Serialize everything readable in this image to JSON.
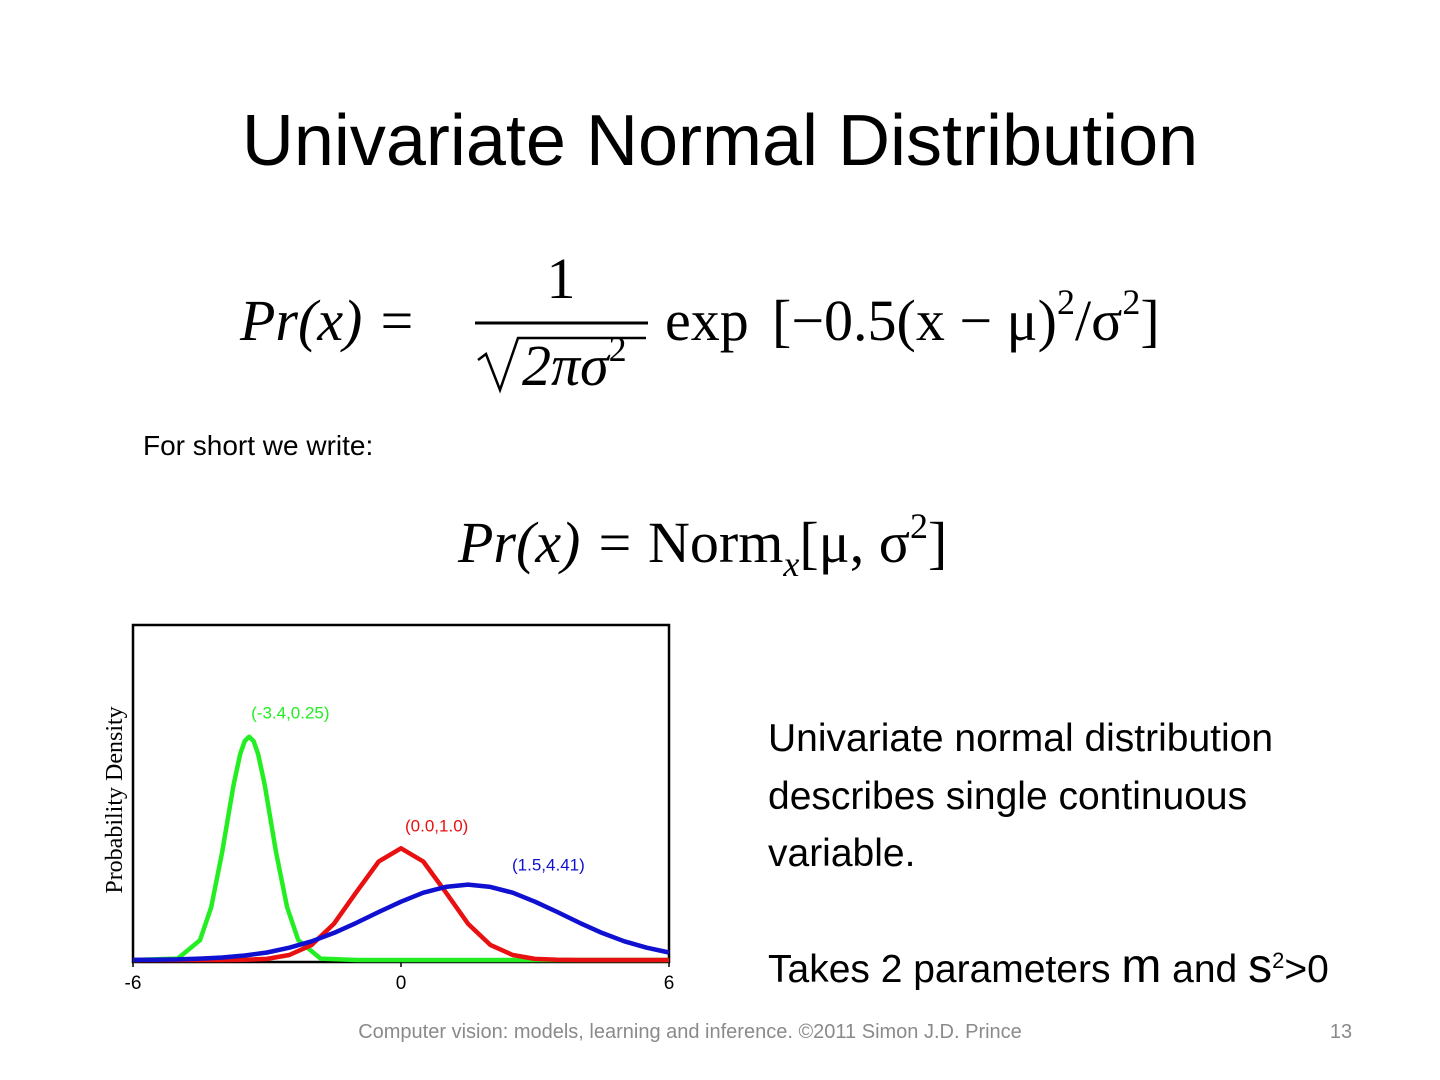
{
  "slide": {
    "title": "Univariate Normal Distribution",
    "formula1": {
      "lhs": "Pr(x) =",
      "numerator": "1",
      "denominator": "2πσ",
      "denominator_exp": "2",
      "func": "exp",
      "arg": "[−0.5(x − μ)",
      "arg_exp": "2",
      "arg_div": "/σ",
      "arg_div_exp": "2",
      "close": "]"
    },
    "note": "For short we write:",
    "formula2": {
      "lhs": "Pr(x) =",
      "func": "Norm",
      "sub": "x",
      "arg": "[μ, σ",
      "arg_exp": "2",
      "close": "]"
    },
    "body": [
      "Univariate normal distribution",
      "describes single continuous",
      "variable."
    ],
    "params": {
      "text": "Takes 2 parameters ",
      "symbol1": "m",
      "middle": " and ",
      "symbol2": "s",
      "exponent": "2",
      "end": ">0"
    },
    "footer": "Computer vision: models, learning and inference.  ©2011 Simon J.D. Prince",
    "page_number": "13"
  },
  "chart_data": {
    "type": "line",
    "y_label": "Probability Density",
    "xlim": [
      -6,
      6
    ],
    "ylim": [
      0,
      1.2
    ],
    "xticks": [
      -6,
      0,
      6
    ],
    "series": [
      {
        "name": "(-3.4,0.25)",
        "color": "#22ee22",
        "x": [
          -6,
          -5,
          -4.5,
          -4.25,
          -4,
          -3.75,
          -3.6,
          -3.5,
          -3.4,
          -3.3,
          -3.2,
          -3.05,
          -2.8,
          -2.55,
          -2.3,
          -1.8,
          -1,
          0,
          6
        ],
        "values": [
          0,
          0.005,
          0.071,
          0.189,
          0.389,
          0.626,
          0.738,
          0.784,
          0.8,
          0.784,
          0.738,
          0.626,
          0.389,
          0.189,
          0.071,
          0.005,
          0,
          0,
          0
        ]
      },
      {
        "name": "(0.0,1.0)",
        "color": "#e81010",
        "x": [
          -6,
          -4,
          -3.5,
          -3,
          -2.5,
          -2,
          -1.5,
          -1,
          -0.5,
          0,
          0.5,
          1,
          1.5,
          2,
          2.5,
          3,
          3.5,
          4,
          6
        ],
        "values": [
          0,
          0,
          0.001,
          0.004,
          0.018,
          0.054,
          0.13,
          0.243,
          0.353,
          0.4,
          0.353,
          0.243,
          0.13,
          0.054,
          0.018,
          0.004,
          0.001,
          0,
          0
        ]
      },
      {
        "name": "(1.5,4.41)",
        "color": "#1010d0",
        "x": [
          -6,
          -5.5,
          -5,
          -4.5,
          -4,
          -3.5,
          -3,
          -2.5,
          -2,
          -1.5,
          -1,
          -0.5,
          0,
          0.5,
          1,
          1.5,
          2,
          2.5,
          3,
          3.5,
          4,
          4.5,
          5,
          5.5,
          6
        ],
        "values": [
          0.0005,
          0.001,
          0.002,
          0.005,
          0.009,
          0.016,
          0.027,
          0.044,
          0.067,
          0.097,
          0.133,
          0.172,
          0.209,
          0.241,
          0.262,
          0.27,
          0.262,
          0.241,
          0.209,
          0.172,
          0.133,
          0.097,
          0.067,
          0.044,
          0.027
        ]
      }
    ]
  }
}
